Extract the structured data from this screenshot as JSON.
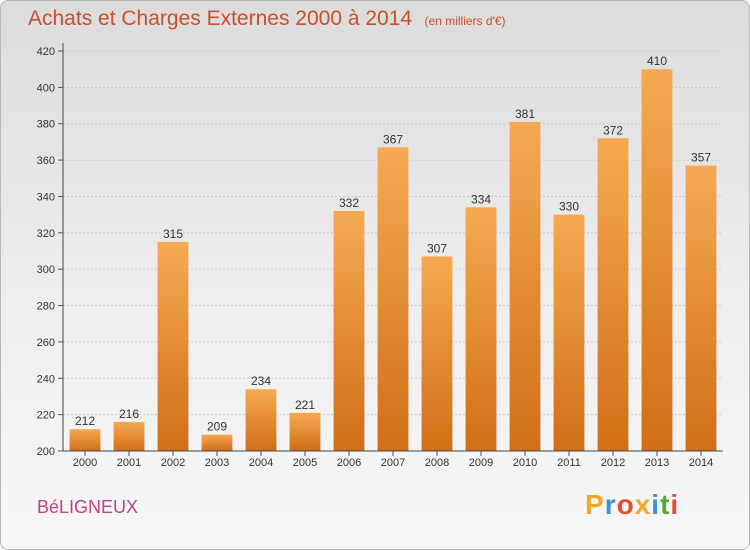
{
  "header": {
    "title": "Achats et Charges Externes 2000 à 2014",
    "subtitle": "(en milliers d'€)"
  },
  "footer": {
    "commune": "BéLIGNEUX",
    "brand_letters": [
      "P",
      "r",
      "o",
      "x",
      "i",
      "t",
      "i"
    ],
    "brand_colors": [
      "#f5a623",
      "#3a8fd8",
      "#e84b2c",
      "#f5a623",
      "#3a8fd8",
      "#5aa832",
      "#e84b2c"
    ]
  },
  "colors": {
    "bar_top": "#f6a952",
    "bar_bottom": "#d06f18",
    "title": "#c8502a",
    "commune": "#c0408a",
    "grid": "#c8c8c8"
  },
  "chart_data": {
    "type": "bar",
    "title": "Achats et Charges Externes 2000 à 2014",
    "subtitle": "(en milliers d'€)",
    "categories": [
      "2000",
      "2001",
      "2002",
      "2003",
      "2004",
      "2005",
      "2006",
      "2007",
      "2008",
      "2009",
      "2010",
      "2011",
      "2012",
      "2013",
      "2014"
    ],
    "values": [
      212,
      216,
      315,
      209,
      234,
      221,
      332,
      367,
      307,
      334,
      381,
      330,
      372,
      410,
      357
    ],
    "ylim": [
      200,
      420
    ],
    "yticks": [
      200,
      220,
      240,
      260,
      280,
      300,
      320,
      340,
      360,
      380,
      400,
      420
    ],
    "grid": true,
    "data_labels": true
  }
}
